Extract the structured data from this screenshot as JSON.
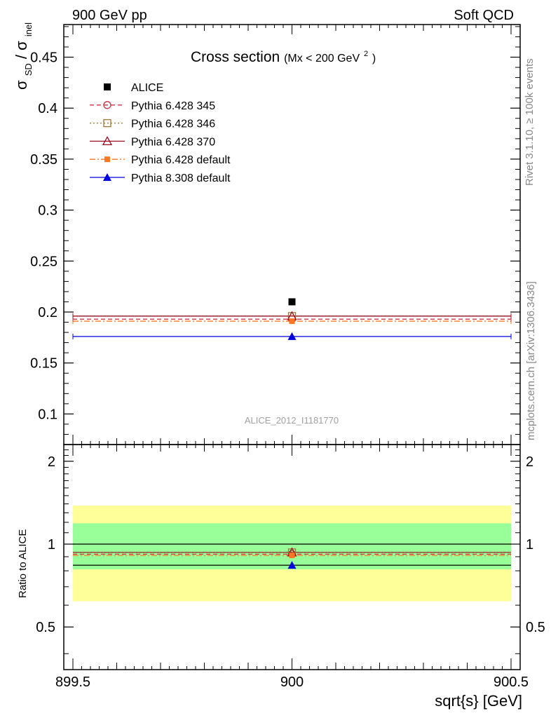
{
  "header": {
    "left": "900 GeV pp",
    "right": "Soft QCD"
  },
  "side_labels": {
    "rivet": "Rivet 3.1.10, ≥ 100k events",
    "mcplots": "mcplots.cern.ch [arXiv:1306.3436]"
  },
  "colors": {
    "alice": "#000000",
    "p345": "#cc3344",
    "p346": "#997733",
    "p370": "#991122",
    "p6def": "#ff7722",
    "p8def": "#0000dd",
    "band_inner": "#99ff99",
    "band_outer": "#ffff99"
  },
  "chart_data": [
    {
      "id": "main",
      "type": "scatter",
      "title": "Cross section",
      "title_suffix": "(Mx < 200 GeV",
      "title_sup": "2",
      "title_close": ")",
      "ylabel_parts": [
        "σ",
        "SD",
        "/ σ",
        "inel"
      ],
      "watermark": "ALICE_2012_I1181770",
      "xlim": [
        899.5,
        900.5
      ],
      "ylim": [
        0.07,
        0.482
      ],
      "yticks": [
        0.1,
        0.15,
        0.2,
        0.25,
        0.3,
        0.35,
        0.4,
        0.45
      ],
      "ytick_labels": [
        "0.1",
        "0.15",
        "0.2",
        "0.25",
        "0.3",
        "0.35",
        "0.4",
        "0.45"
      ],
      "legend_position": "top-left",
      "series": [
        {
          "key": "alice",
          "name": "ALICE",
          "x": 900,
          "y": 0.21,
          "marker": "square-filled",
          "line": "none"
        },
        {
          "key": "p345",
          "name": "Pythia 6.428 345",
          "x": 900,
          "y": 0.193,
          "marker": "circle-open",
          "line": "dashed"
        },
        {
          "key": "p346",
          "name": "Pythia 6.428 346",
          "x": 900,
          "y": 0.196,
          "marker": "square-open",
          "line": "dotted"
        },
        {
          "key": "p370",
          "name": "Pythia 6.428 370",
          "x": 900,
          "y": 0.196,
          "marker": "triangle-open",
          "line": "solid"
        },
        {
          "key": "p6def",
          "name": "Pythia 6.428 default",
          "x": 900,
          "y": 0.191,
          "marker": "square-filled-small",
          "line": "dashdot"
        },
        {
          "key": "p8def",
          "name": "Pythia 8.308 default",
          "x": 900,
          "y": 0.176,
          "marker": "triangle-filled",
          "line": "solid"
        }
      ]
    },
    {
      "id": "ratio",
      "type": "scatter",
      "ylabel": "Ratio to ALICE",
      "xlabel": "sqrt{s} [GeV]",
      "xlim": [
        899.5,
        900.5
      ],
      "xticks": [
        899.5,
        900,
        900.5
      ],
      "xtick_labels": [
        "899.5",
        "900",
        "900.5"
      ],
      "ylim": [
        0.35,
        2.3
      ],
      "log_y": true,
      "yticks": [
        0.5,
        1,
        2
      ],
      "ytick_labels": [
        "0.5",
        "1",
        "2"
      ],
      "band_inner": [
        0.81,
        1.19
      ],
      "band_outer": [
        0.62,
        1.38
      ],
      "series": [
        {
          "key": "p345",
          "y": 0.919
        },
        {
          "key": "p346",
          "y": 0.933
        },
        {
          "key": "p370",
          "y": 0.933
        },
        {
          "key": "p6def",
          "y": 0.91
        },
        {
          "key": "p8def",
          "y": 0.838
        }
      ]
    }
  ]
}
